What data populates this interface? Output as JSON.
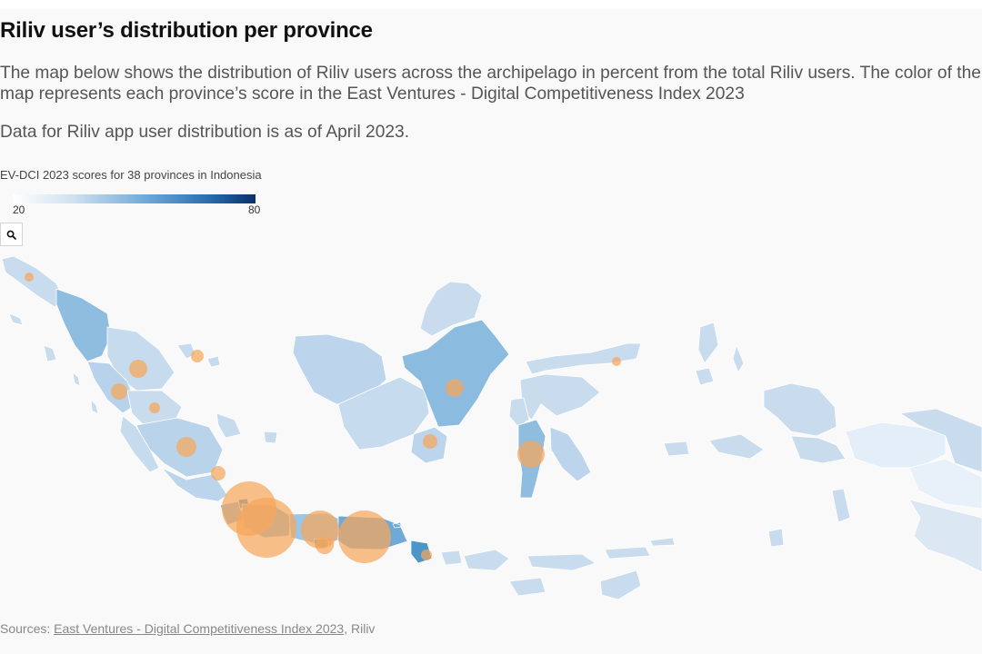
{
  "title": "Riliv user’s distribution per province",
  "description": "The map below shows the distribution of Riliv users across the archipelago in percent from the total Riliv users. The color of the map represents each province’s score in the East Ventures - Digital Competitiveness Index 2023",
  "note": "Data for Riliv app user distribution is as of April 2023.",
  "legend": {
    "title": "EV-DCI 2023 scores for 38 provinces in Indonesia",
    "min_label": "20",
    "max_label": "80",
    "gradient_colors": [
      "#ffffff",
      "#cfe0f1",
      "#6fa9d8",
      "#2b6fb0",
      "#08306b"
    ]
  },
  "controls": {
    "zoom_icon": "search-icon"
  },
  "colors": {
    "bubble": "#f7a65a",
    "land_light": "#c8dcee",
    "land_mid": "#9cc6e5",
    "land_dark": "#4b95c8",
    "background": "#f9f9f9"
  },
  "sources": {
    "prefix": "Sources: ",
    "link_text": "East Ventures - Digital Competitiveness Index 2023",
    "suffix": ", Riliv"
  }
}
